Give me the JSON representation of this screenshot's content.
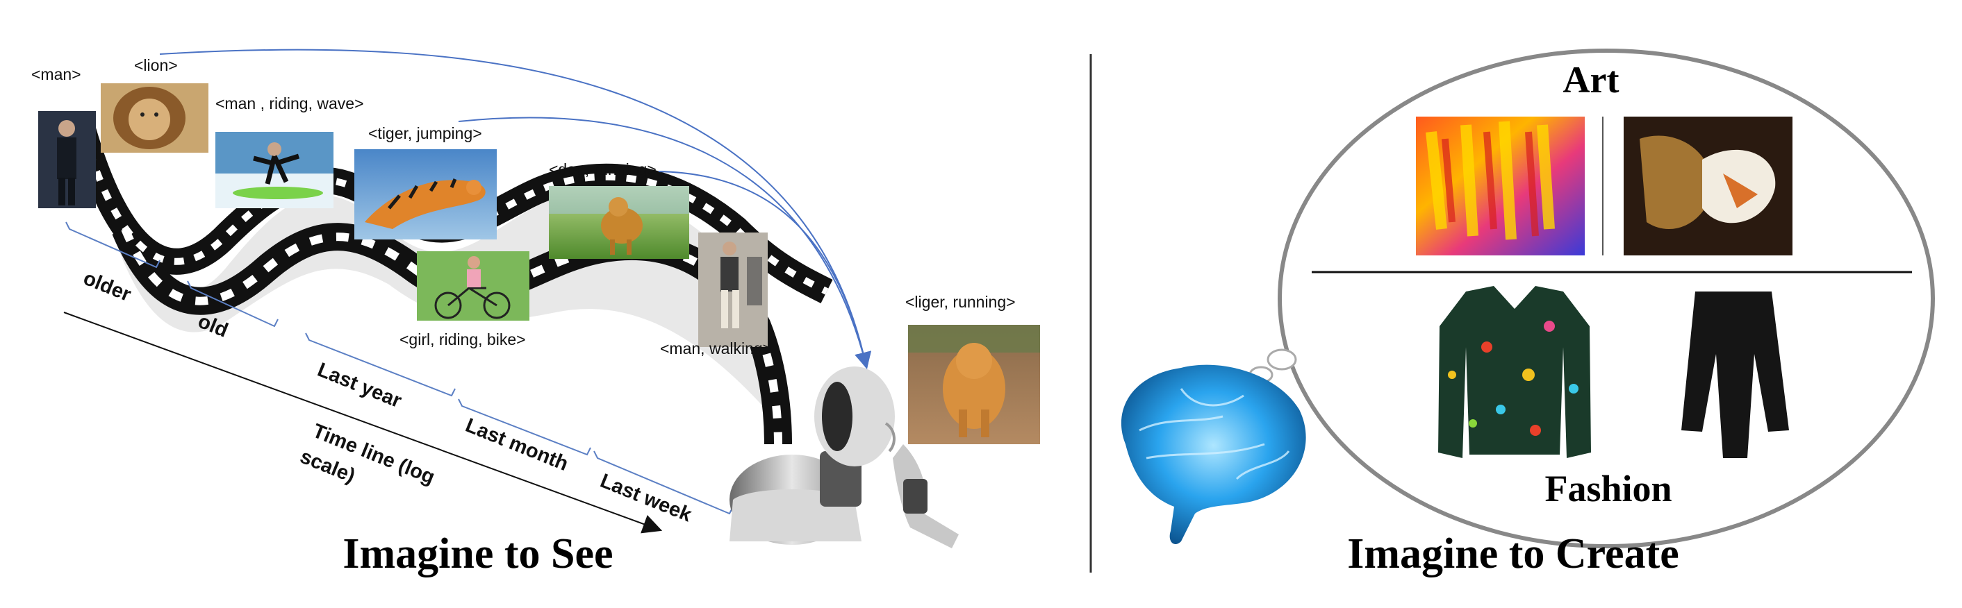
{
  "left_panel": {
    "caption": "Imagine to See",
    "image_labels": [
      "<man>",
      "<lion>",
      "<man , riding, wave>",
      "<tiger, jumping>",
      "<dog, running>",
      "<girl, riding, bike>",
      "<man, walking>",
      "<liger, running>"
    ],
    "timeline_labels": [
      "older",
      "old",
      "Last year",
      "Last month",
      "Last week"
    ],
    "axis_title": [
      "Time line (log",
      "scale)"
    ]
  },
  "right_panel": {
    "caption": "Imagine to Create",
    "art_title": "Art",
    "fashion_title": "Fashion"
  },
  "colors": {
    "arrow": "#4a72c4",
    "film": "#111111",
    "divider": "#333333",
    "bubble_stroke": "#888888",
    "brain": "#1e90d8"
  }
}
